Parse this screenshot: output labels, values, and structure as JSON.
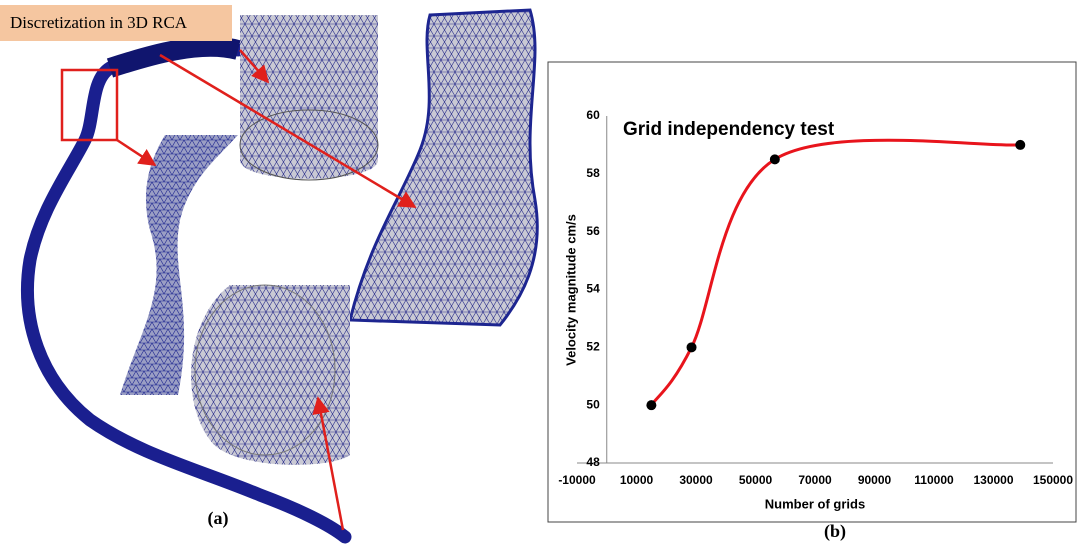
{
  "figure": {
    "label": "Discretization in 3D RCA",
    "panel_a": "(a)",
    "panel_b": "(b)"
  },
  "chart_data": {
    "type": "line",
    "title": "Grid independency test",
    "x_label": "Number of grids",
    "y_label": "Velocity magnitude  cm/s",
    "x": [
      15000,
      28500,
      56500,
      139000
    ],
    "values": [
      50,
      52,
      58.5,
      59
    ],
    "color": "#e8141c",
    "marker_color": "#000000",
    "smooth": true,
    "xlim": [
      -10000,
      150000
    ],
    "xticks": [
      -10000,
      10000,
      30000,
      50000,
      70000,
      90000,
      110000,
      130000,
      150000
    ],
    "ylim": [
      48,
      60
    ],
    "yticks": [
      48,
      50,
      52,
      54,
      56,
      58,
      60
    ],
    "grid": false
  }
}
